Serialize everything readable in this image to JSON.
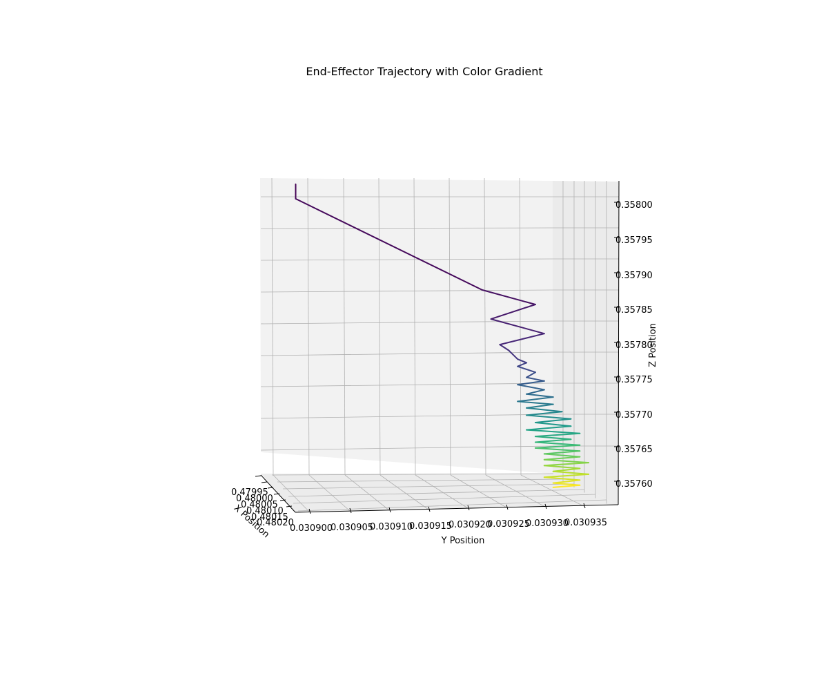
{
  "chart_data": {
    "type": "line",
    "projection": "3d",
    "title": "End-Effector Trajectory with Color Gradient",
    "xlabel": "X Position",
    "ylabel": "Y Position",
    "zlabel": "Z Position",
    "x_ticks": [
      "0.47995",
      "0.48000",
      "0.48005",
      "0.48010",
      "0.48015",
      "0.48020"
    ],
    "y_ticks": [
      "0.030900",
      "0.030905",
      "0.030910",
      "0.030915",
      "0.030920",
      "0.030925",
      "0.030930",
      "0.030935"
    ],
    "z_ticks": [
      "0.35760",
      "0.35765",
      "0.35770",
      "0.35775",
      "0.35780",
      "0.35785",
      "0.35790",
      "0.35795",
      "0.35800"
    ],
    "ylim": [
      0.030899,
      0.030937
    ],
    "zlim": [
      0.357575,
      0.358025
    ],
    "grid": true,
    "colormap": "viridis",
    "colormap_stops": [
      "#440154",
      "#482878",
      "#3e4989",
      "#31688e",
      "#26828e",
      "#1f9e89",
      "#35b779",
      "#6ece58",
      "#b5de2b",
      "#fde725"
    ],
    "series": [
      {
        "points": [
          [
            0.030903,
            0.35801
          ],
          [
            0.030903,
            0.35799
          ],
          [
            0.030924,
            0.357865
          ],
          [
            0.03093,
            0.357845
          ],
          [
            0.030925,
            0.357825
          ],
          [
            0.030931,
            0.357805
          ],
          [
            0.030926,
            0.35779
          ],
          [
            0.030927,
            0.357782
          ],
          [
            0.030928,
            0.35777
          ],
          [
            0.030929,
            0.357765
          ],
          [
            0.030928,
            0.35776
          ],
          [
            0.03093,
            0.357752
          ],
          [
            0.030929,
            0.357745
          ],
          [
            0.030931,
            0.35774
          ],
          [
            0.030928,
            0.357735
          ],
          [
            0.030931,
            0.357728
          ],
          [
            0.030929,
            0.357722
          ],
          [
            0.030932,
            0.357718
          ],
          [
            0.030928,
            0.357712
          ],
          [
            0.030932,
            0.357708
          ],
          [
            0.030929,
            0.357703
          ],
          [
            0.030933,
            0.357698
          ],
          [
            0.030929,
            0.357693
          ],
          [
            0.030934,
            0.357688
          ],
          [
            0.03093,
            0.357683
          ],
          [
            0.030934,
            0.357678
          ],
          [
            0.030929,
            0.357673
          ],
          [
            0.030935,
            0.357668
          ],
          [
            0.03093,
            0.357664
          ],
          [
            0.030934,
            0.35766
          ],
          [
            0.03093,
            0.357656
          ],
          [
            0.030935,
            0.357652
          ],
          [
            0.03093,
            0.357648
          ],
          [
            0.030935,
            0.357644
          ],
          [
            0.030931,
            0.35764
          ],
          [
            0.030935,
            0.357636
          ],
          [
            0.030931,
            0.357632
          ],
          [
            0.030936,
            0.357628
          ],
          [
            0.030931,
            0.357624
          ],
          [
            0.030935,
            0.35762
          ],
          [
            0.030932,
            0.357616
          ],
          [
            0.030936,
            0.357612
          ],
          [
            0.030931,
            0.357608
          ],
          [
            0.030935,
            0.357604
          ],
          [
            0.030932,
            0.3576
          ],
          [
            0.030935,
            0.357597
          ],
          [
            0.030932,
            0.357594
          ]
        ]
      }
    ]
  }
}
